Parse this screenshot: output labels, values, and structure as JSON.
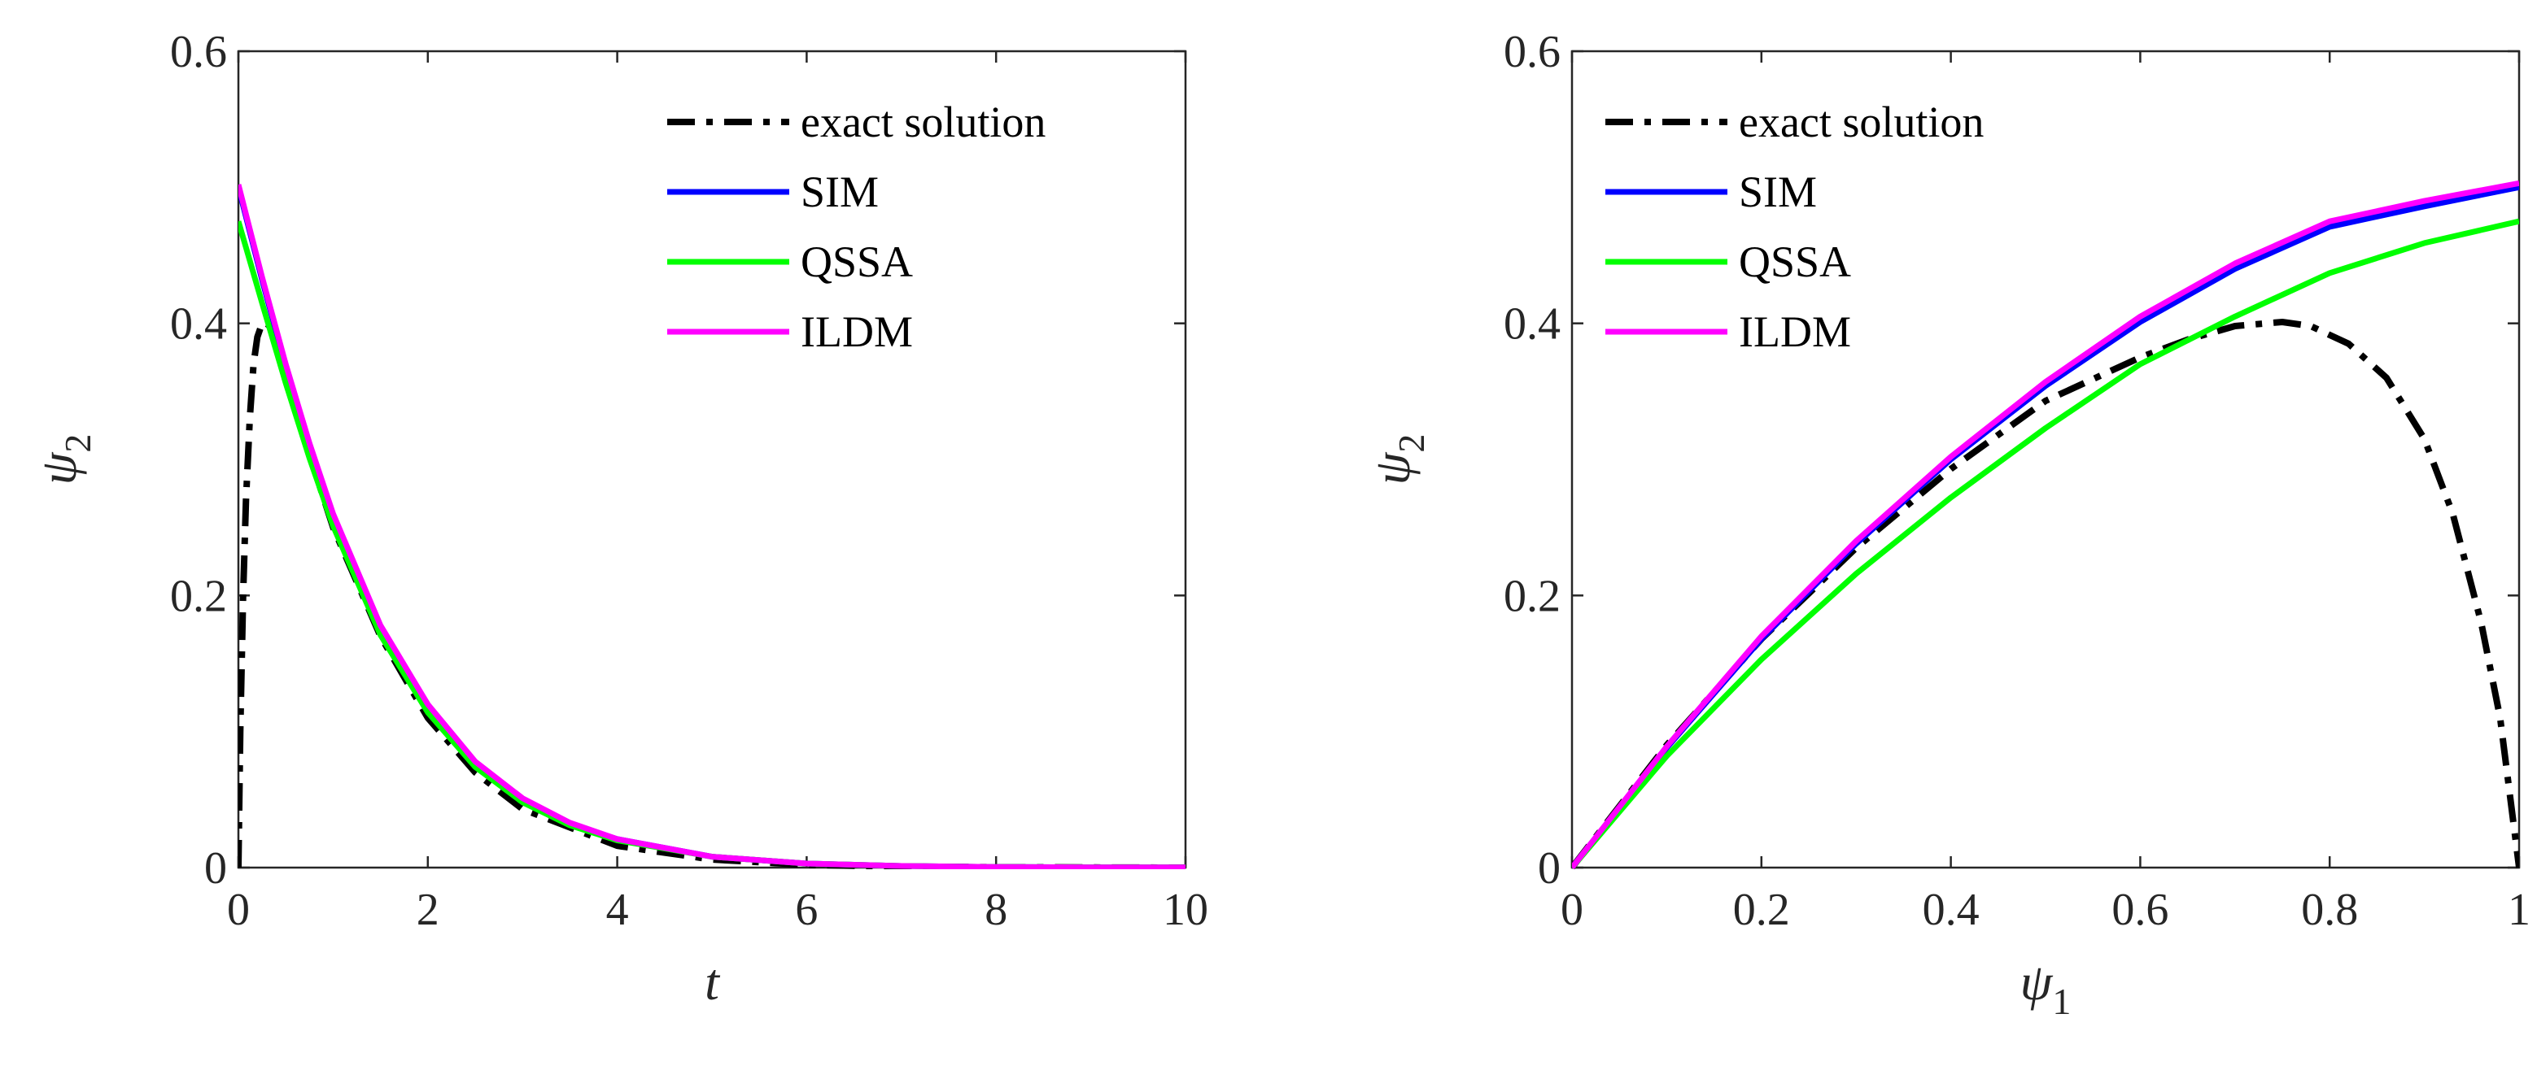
{
  "chart_data": [
    {
      "type": "line",
      "xlabel": "t",
      "ylabel": {
        "base": "ψ",
        "sub": "2"
      },
      "xlim": [
        0,
        10
      ],
      "ylim": [
        0,
        0.6
      ],
      "xticks": [
        "0",
        "2",
        "4",
        "6",
        "8",
        "10"
      ],
      "yticks": [
        "0",
        "0.2",
        "0.4",
        "0.6"
      ],
      "grid": false,
      "legend_position": "top-right",
      "series": [
        {
          "name": "exact solution",
          "color": "#000000",
          "style": "dash-dot",
          "x": [
            0,
            0.02,
            0.05,
            0.08,
            0.12,
            0.16,
            0.2,
            0.25,
            0.3,
            0.35,
            0.4,
            0.5,
            0.6,
            0.8,
            1.0,
            1.5,
            2.0,
            2.5,
            3.0,
            4.0,
            5.0,
            6.0,
            7.0,
            8.0,
            9.0,
            10.0
          ],
          "y": [
            0,
            0.1,
            0.2,
            0.27,
            0.33,
            0.37,
            0.39,
            0.4,
            0.4,
            0.396,
            0.388,
            0.365,
            0.34,
            0.293,
            0.25,
            0.17,
            0.11,
            0.07,
            0.043,
            0.016,
            0.006,
            0.002,
            0.0008,
            0.0003,
            0.0001,
            0.0
          ]
        },
        {
          "name": "SIM",
          "color": "#0000ff",
          "style": "solid",
          "x": [
            0,
            0.25,
            0.5,
            0.75,
            1.0,
            1.5,
            2.0,
            2.5,
            3.0,
            3.5,
            4.0,
            5.0,
            6.0,
            7.0,
            8.0,
            9.0,
            10.0
          ],
          "y": [
            0.5,
            0.432,
            0.368,
            0.31,
            0.258,
            0.176,
            0.118,
            0.077,
            0.05,
            0.032,
            0.021,
            0.008,
            0.003,
            0.0012,
            0.0005,
            0.0002,
            0.0001
          ]
        },
        {
          "name": "QSSA",
          "color": "#00ff00",
          "style": "solid",
          "x": [
            0,
            0.25,
            0.5,
            0.75,
            1.0,
            1.5,
            2.0,
            2.5,
            3.0,
            3.5,
            4.0,
            5.0,
            6.0,
            7.0,
            8.0,
            9.0,
            10.0
          ],
          "y": [
            0.475,
            0.415,
            0.356,
            0.301,
            0.251,
            0.171,
            0.114,
            0.074,
            0.048,
            0.031,
            0.02,
            0.008,
            0.003,
            0.0012,
            0.0005,
            0.0002,
            0.0001
          ]
        },
        {
          "name": "ILDM",
          "color": "#ff00ff",
          "style": "solid",
          "x": [
            0,
            0.25,
            0.5,
            0.75,
            1.0,
            1.5,
            2.0,
            2.5,
            3.0,
            3.5,
            4.0,
            5.0,
            6.0,
            7.0,
            8.0,
            9.0,
            10.0
          ],
          "y": [
            0.502,
            0.434,
            0.37,
            0.312,
            0.26,
            0.178,
            0.12,
            0.078,
            0.051,
            0.033,
            0.021,
            0.008,
            0.003,
            0.0012,
            0.0005,
            0.0002,
            0.0001
          ]
        }
      ]
    },
    {
      "type": "line",
      "xlabel": {
        "base": "ψ",
        "sub": "1"
      },
      "ylabel": {
        "base": "ψ",
        "sub": "2"
      },
      "xlim": [
        0,
        1
      ],
      "ylim": [
        0,
        0.6
      ],
      "xticks": [
        "0",
        "0.2",
        "0.4",
        "0.6",
        "0.8",
        "1"
      ],
      "yticks": [
        "0",
        "0.2",
        "0.4",
        "0.6"
      ],
      "grid": false,
      "legend_position": "top-left",
      "series": [
        {
          "name": "exact solution",
          "color": "#000000",
          "style": "dash-dot",
          "x": [
            0,
            0.1,
            0.2,
            0.3,
            0.4,
            0.5,
            0.6,
            0.65,
            0.7,
            0.75,
            0.78,
            0.82,
            0.86,
            0.9,
            0.93,
            0.96,
            0.98,
            1.0
          ],
          "y": [
            0,
            0.09,
            0.168,
            0.235,
            0.293,
            0.343,
            0.375,
            0.388,
            0.398,
            0.401,
            0.398,
            0.385,
            0.36,
            0.315,
            0.26,
            0.18,
            0.11,
            0.0
          ]
        },
        {
          "name": "SIM",
          "color": "#0000ff",
          "style": "solid",
          "x": [
            0,
            0.1,
            0.2,
            0.3,
            0.4,
            0.5,
            0.6,
            0.7,
            0.8,
            0.9,
            1.0
          ],
          "y": [
            0,
            0.088,
            0.168,
            0.238,
            0.3,
            0.354,
            0.401,
            0.44,
            0.471,
            0.486,
            0.5
          ]
        },
        {
          "name": "QSSA",
          "color": "#00ff00",
          "style": "solid",
          "x": [
            0,
            0.1,
            0.2,
            0.3,
            0.4,
            0.5,
            0.6,
            0.7,
            0.8,
            0.9,
            1.0
          ],
          "y": [
            0,
            0.082,
            0.153,
            0.216,
            0.272,
            0.323,
            0.37,
            0.405,
            0.437,
            0.459,
            0.475
          ]
        },
        {
          "name": "ILDM",
          "color": "#ff00ff",
          "style": "solid",
          "x": [
            0,
            0.1,
            0.2,
            0.3,
            0.4,
            0.5,
            0.6,
            0.7,
            0.8,
            0.9,
            1.0
          ],
          "y": [
            0,
            0.089,
            0.17,
            0.24,
            0.302,
            0.357,
            0.405,
            0.444,
            0.475,
            0.49,
            0.503
          ]
        }
      ]
    }
  ]
}
